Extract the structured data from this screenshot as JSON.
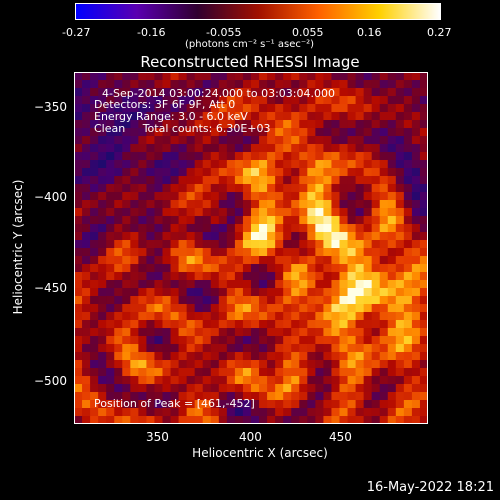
{
  "colorbar": {
    "ticks": [
      "-0.27",
      "-0.16",
      "-0.055",
      "0.055",
      "0.16",
      "0.27"
    ],
    "unit": "(photons cm⁻² s⁻¹ asec⁻²)",
    "range": [
      -0.27,
      0.27
    ],
    "colors": [
      "#0000ff",
      "#5a00b0",
      "#300030",
      "#a01000",
      "#ff6000",
      "#ffd000",
      "#ffffff"
    ]
  },
  "plot": {
    "title": "Reconstructed RHESSI Image",
    "xlabel": "Heliocentric X (arcsec)",
    "ylabel": "Heliocentric Y (arcsec)",
    "x_ticks": [
      "350",
      "400",
      "450"
    ],
    "y_ticks": [
      "−350",
      "−400",
      "−450",
      "−500"
    ],
    "x_range": [
      303,
      492
    ],
    "y_range": [
      -526,
      -337
    ],
    "peak": [
      461,
      -452
    ]
  },
  "overlay": {
    "line1": "4-Sep-2014 03:00:24.000 to 03:03:04.000",
    "line2": "Detectors: 3F 6F 9F, Att 0",
    "line3": "Energy Range: 3.0 - 6.0 keV",
    "line4": "Clean     Total counts: 6.30E+03",
    "peak_text": "Position of Peak = [461,-452]"
  },
  "footer": {
    "timestamp": "16-May-2022 18:21"
  }
}
